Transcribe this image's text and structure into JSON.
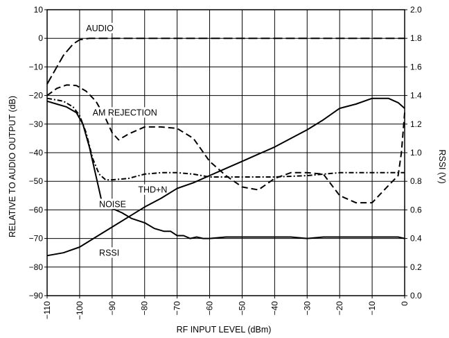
{
  "chart_data": {
    "type": "line",
    "xlabel": "RF INPUT LEVEL  (dBm)",
    "ylabel": "RELATIVE TO AUDIO OUTPUT (dB)",
    "y2label": "RSSI (V)",
    "xlim": [
      -110,
      0
    ],
    "ylim": [
      -90,
      10
    ],
    "y2lim": [
      0.0,
      2.0
    ],
    "x_ticks": [
      -110,
      -100,
      -90,
      -80,
      -70,
      -60,
      -50,
      -40,
      -30,
      -20,
      -10,
      0
    ],
    "x_tick_labels": [
      "−110",
      "−100",
      "−90",
      "−80",
      "−70",
      "−60",
      "−50",
      "−40",
      "−30",
      "−20",
      "−10",
      "0"
    ],
    "y_ticks": [
      10,
      0,
      -10,
      -20,
      -30,
      -40,
      -50,
      -60,
      -70,
      -80,
      -90
    ],
    "y_tick_labels": [
      "10",
      "0",
      "−10",
      "−20",
      "−30",
      "−40",
      "−50",
      "−60",
      "−70",
      "−80",
      "−90"
    ],
    "y2_ticks": [
      2.0,
      1.8,
      1.6,
      1.4,
      1.2,
      1.0,
      0.8,
      0.6,
      0.4,
      0.2,
      0.0
    ],
    "y2_tick_labels": [
      "2.0",
      "1.8",
      "1.6",
      "1.4",
      "1.2",
      "1.0",
      "0.8",
      "0.6",
      "0.4",
      "0.2",
      "0.0"
    ],
    "grid": true,
    "series": [
      {
        "name": "AUDIO",
        "axis": "left",
        "style": "long-dash",
        "x": [
          -110,
          -108,
          -105,
          -102,
          -100,
          -97,
          -95,
          -90,
          -80,
          -60,
          -40,
          -20,
          0
        ],
        "y": [
          -16,
          -12,
          -6,
          -2,
          -0.5,
          0,
          0,
          0,
          0,
          0,
          0,
          0,
          0
        ]
      },
      {
        "name": "AM REJECTION",
        "axis": "left",
        "style": "dash",
        "x": [
          -110,
          -107,
          -104,
          -101,
          -98,
          -95,
          -92,
          -90,
          -88,
          -85,
          -80,
          -75,
          -70,
          -65,
          -60,
          -55,
          -50,
          -45,
          -40,
          -35,
          -30,
          -25,
          -20,
          -15,
          -10,
          -5,
          -2,
          -1,
          0
        ],
        "y": [
          -20,
          -17.5,
          -16.3,
          -16.5,
          -18.5,
          -22,
          -28,
          -33,
          -35.5,
          -33.5,
          -31,
          -31,
          -31.5,
          -35,
          -43,
          -48,
          -52,
          -53,
          -49,
          -47,
          -47,
          -47.5,
          -55,
          -57.5,
          -57.5,
          -51.5,
          -48,
          -40,
          -26
        ]
      },
      {
        "name": "THD+N",
        "axis": "left",
        "style": "dash-dot",
        "x": [
          -110,
          -105,
          -102,
          -100,
          -98,
          -96,
          -94,
          -92,
          -90,
          -85,
          -80,
          -75,
          -70,
          -65,
          -60,
          -50,
          -40,
          -30,
          -20,
          -10,
          0
        ],
        "y": [
          -21,
          -22,
          -24,
          -27,
          -33,
          -42,
          -47.5,
          -49.5,
          -49.5,
          -49,
          -47.5,
          -47,
          -47,
          -47.5,
          -48.5,
          -48.5,
          -48.5,
          -48,
          -47,
          -47,
          -47
        ]
      },
      {
        "name": "NOISE",
        "axis": "left",
        "style": "solid",
        "x": [
          -110,
          -107,
          -104,
          -101,
          -99,
          -97,
          -95,
          -94,
          -93,
          -92,
          -90,
          -87,
          -84,
          -80,
          -77,
          -74,
          -72,
          -70,
          -68,
          -66,
          -64,
          -62,
          -60,
          -55,
          -50,
          -45,
          -40,
          -35,
          -30,
          -25,
          -20,
          -15,
          -10,
          -5,
          -2,
          0
        ],
        "y": [
          -22,
          -23,
          -24,
          -26,
          -30,
          -38,
          -48,
          -53,
          -58,
          -59,
          -59.5,
          -61,
          -63,
          -64.5,
          -66.5,
          -67.5,
          -67.5,
          -69,
          -69,
          -70,
          -69.5,
          -70,
          -70,
          -69.5,
          -69.5,
          -69.5,
          -69.5,
          -69.5,
          -70,
          -69.5,
          -69.5,
          -69.5,
          -69.5,
          -69.5,
          -69.5,
          -70
        ]
      },
      {
        "name": "RSSI",
        "axis": "right",
        "style": "solid",
        "x": [
          -110,
          -105,
          -100,
          -95,
          -90,
          -85,
          -80,
          -75,
          -70,
          -65,
          -60,
          -55,
          -50,
          -45,
          -40,
          -35,
          -30,
          -25,
          -20,
          -15,
          -10,
          -5,
          -2,
          0
        ],
        "y": [
          0.28,
          0.3,
          0.34,
          0.41,
          0.48,
          0.55,
          0.62,
          0.68,
          0.75,
          0.79,
          0.84,
          0.89,
          0.94,
          0.99,
          1.04,
          1.1,
          1.16,
          1.23,
          1.31,
          1.34,
          1.38,
          1.38,
          1.35,
          1.31
        ]
      }
    ],
    "annotations": [
      {
        "text": "AUDIO",
        "x": -98,
        "y": 2.5
      },
      {
        "text": "AM REJECTION",
        "x": -96,
        "y": -27
      },
      {
        "text": "THD+N",
        "x": -82,
        "y": -54
      },
      {
        "text": "NOISE",
        "x": -94,
        "y": -59
      },
      {
        "text": "RSSI",
        "x": -94,
        "y": -76
      }
    ]
  }
}
